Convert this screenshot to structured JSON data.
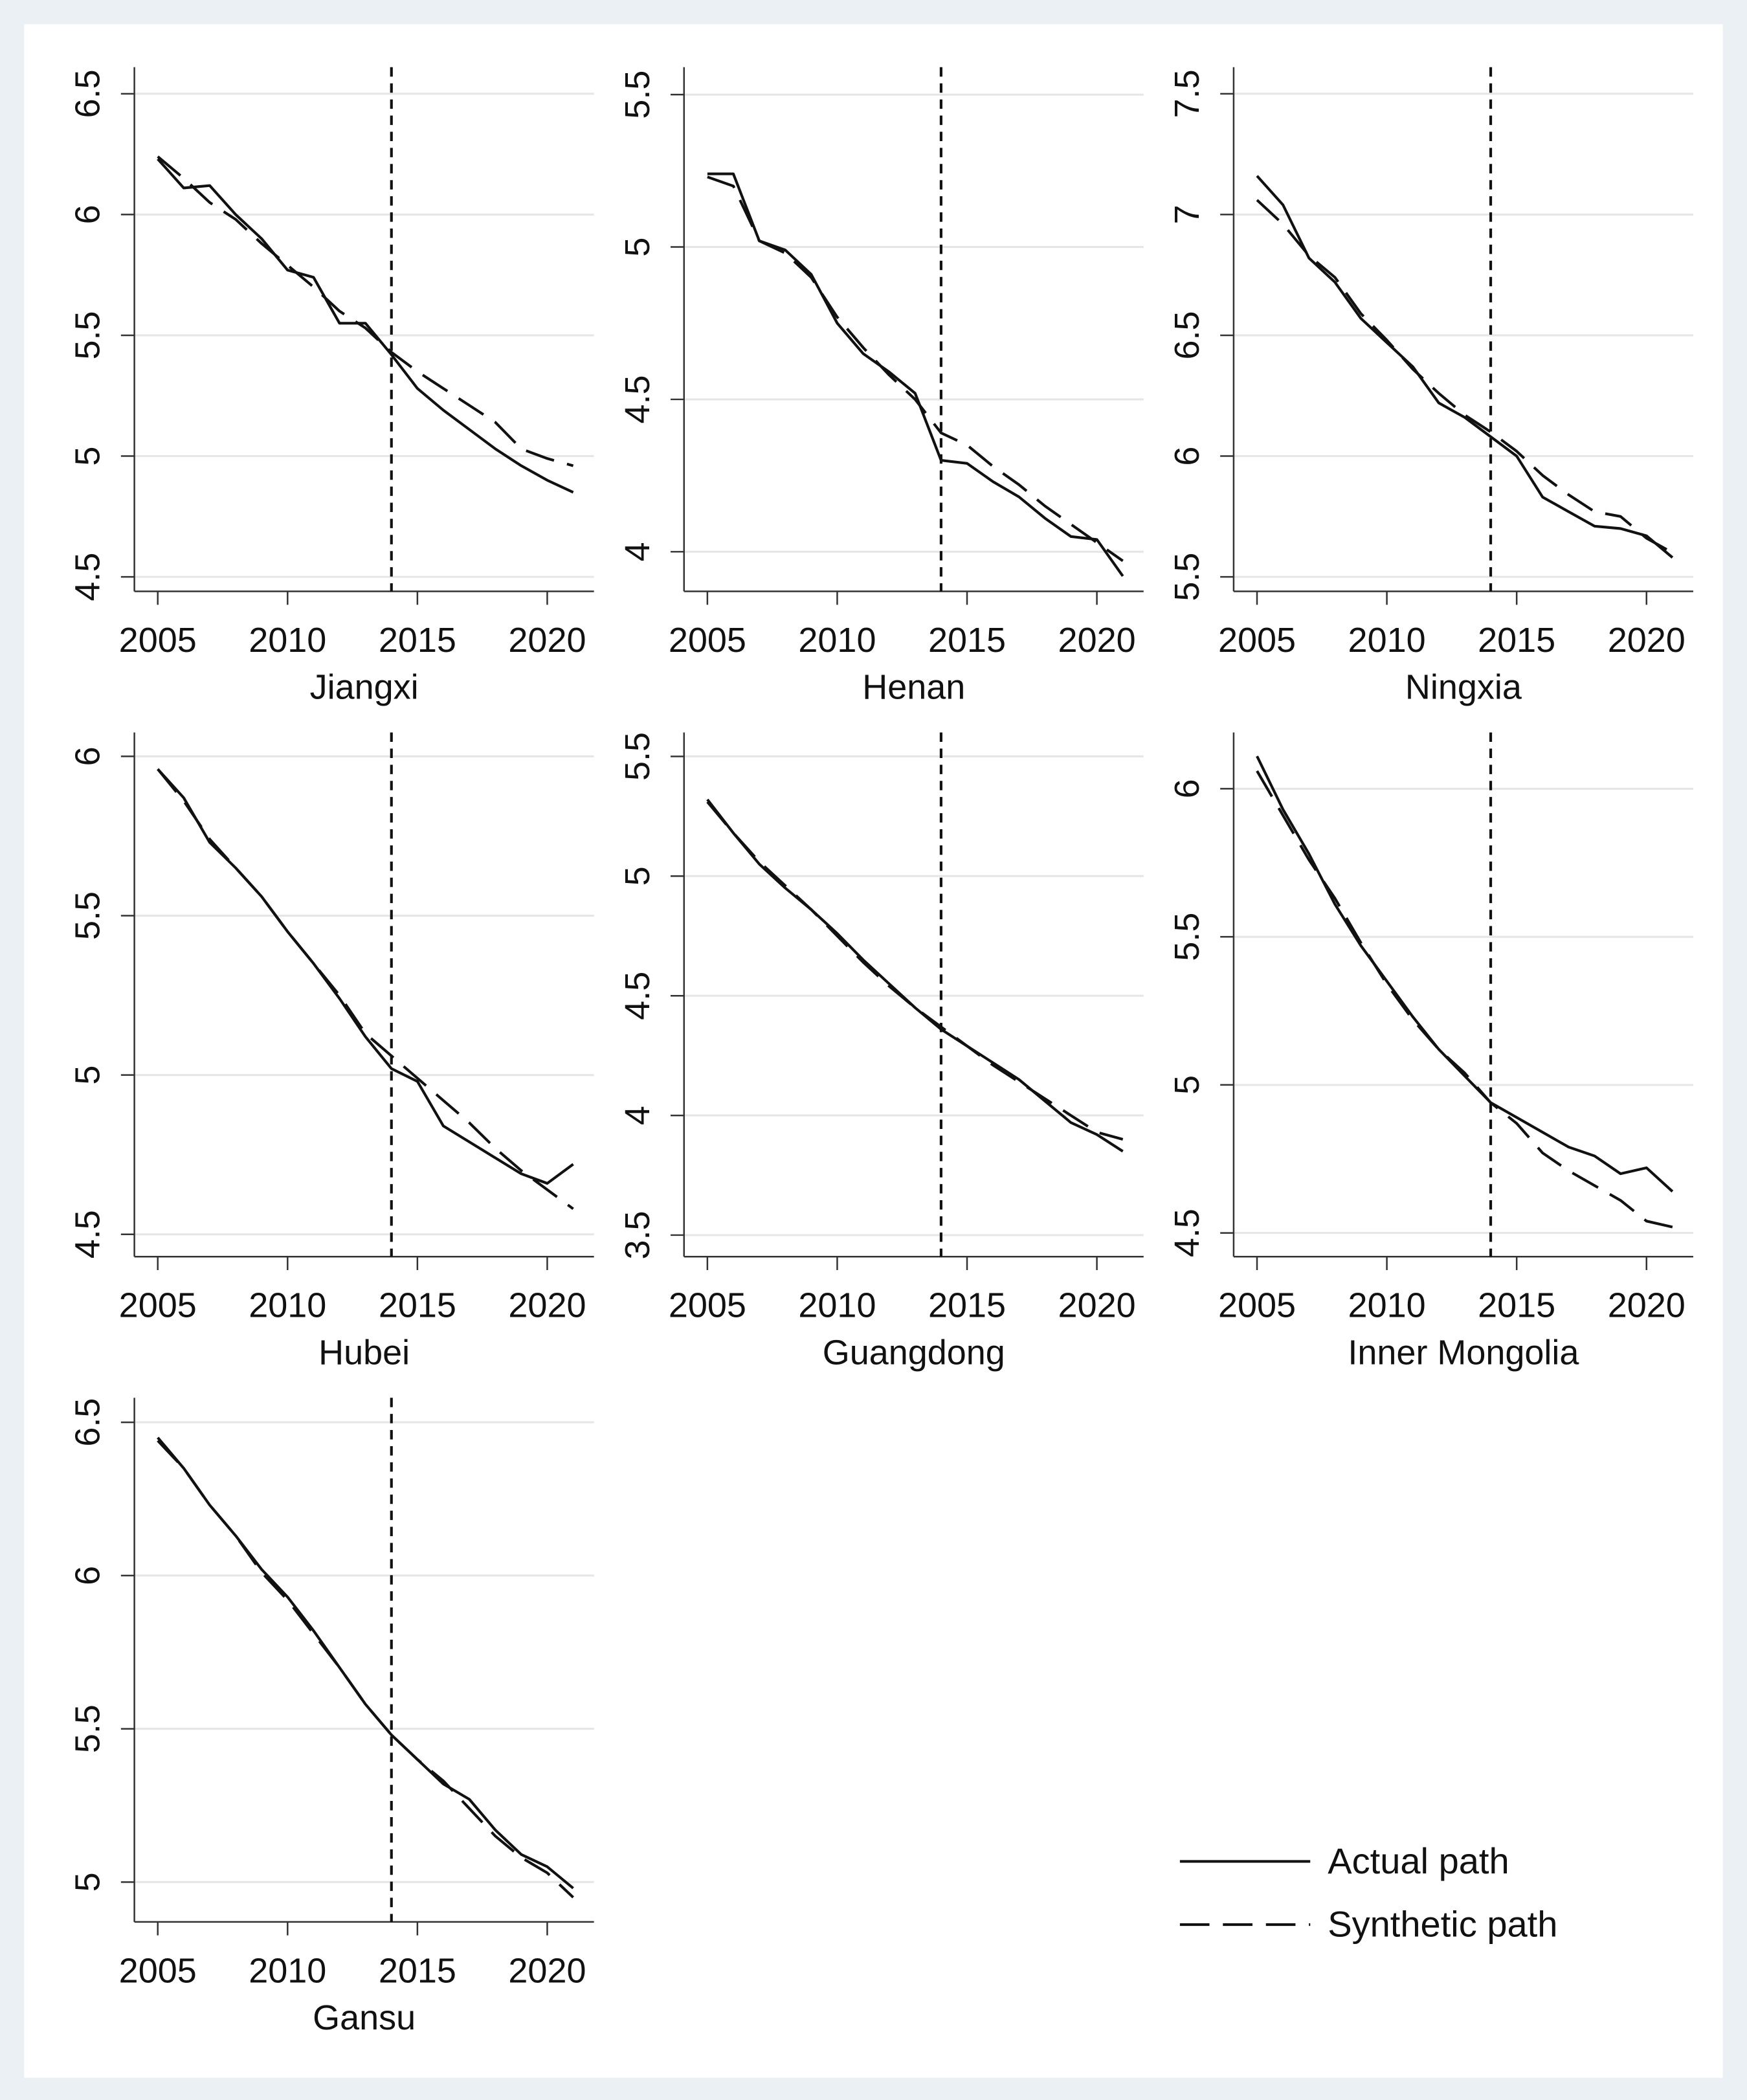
{
  "chart_data": [
    {
      "type": "line",
      "xlabel": "Jiangxi",
      "x": [
        2005,
        2006,
        2007,
        2008,
        2009,
        2010,
        2011,
        2012,
        2013,
        2014,
        2015,
        2016,
        2017,
        2018,
        2019,
        2020,
        2021
      ],
      "series": [
        {
          "name": "Actual path",
          "color": "#111111",
          "values": [
            6.23,
            6.11,
            6.12,
            6.0,
            5.9,
            5.77,
            5.74,
            5.55,
            5.55,
            5.42,
            5.28,
            5.19,
            5.11,
            5.03,
            4.96,
            4.9,
            4.85
          ]
        },
        {
          "name": "Synthetic path",
          "color": "#111111",
          "dashed": true,
          "values": [
            6.24,
            6.15,
            6.05,
            5.98,
            5.88,
            5.79,
            5.7,
            5.6,
            5.53,
            5.43,
            5.35,
            5.28,
            5.21,
            5.14,
            5.03,
            4.99,
            4.96
          ]
        }
      ],
      "xlim": [
        2004.1,
        2021.8
      ],
      "xticks": [
        2005,
        2010,
        2015,
        2020
      ],
      "ylim": [
        4.44,
        6.61
      ],
      "yticks": [
        4.5,
        5,
        5.5,
        6,
        6.5
      ],
      "vline": 2014,
      "grid": true
    },
    {
      "type": "line",
      "xlabel": "Henan",
      "x": [
        2005,
        2006,
        2007,
        2008,
        2009,
        2010,
        2011,
        2012,
        2013,
        2014,
        2015,
        2016,
        2017,
        2018,
        2019,
        2020,
        2021
      ],
      "series": [
        {
          "name": "Actual path",
          "color": "#111111",
          "values": [
            5.24,
            5.24,
            5.02,
            4.99,
            4.91,
            4.75,
            4.65,
            4.59,
            4.52,
            4.3,
            4.29,
            4.23,
            4.18,
            4.11,
            4.05,
            4.04,
            3.92
          ]
        },
        {
          "name": "Synthetic path",
          "color": "#111111",
          "dashed": true,
          "values": [
            5.23,
            5.2,
            5.02,
            4.98,
            4.9,
            4.77,
            4.67,
            4.58,
            4.5,
            4.39,
            4.35,
            4.28,
            4.22,
            4.15,
            4.09,
            4.03,
            3.97
          ]
        }
      ],
      "xlim": [
        2004.1,
        2021.8
      ],
      "xticks": [
        2005,
        2010,
        2015,
        2020
      ],
      "ylim": [
        3.87,
        5.59
      ],
      "yticks": [
        4,
        4.5,
        5,
        5.5
      ],
      "vline": 2014,
      "grid": true
    },
    {
      "type": "line",
      "xlabel": "Ningxia",
      "x": [
        2005,
        2006,
        2007,
        2008,
        2009,
        2010,
        2011,
        2012,
        2013,
        2014,
        2015,
        2016,
        2017,
        2018,
        2019,
        2020,
        2021
      ],
      "series": [
        {
          "name": "Actual path",
          "color": "#111111",
          "values": [
            7.16,
            7.04,
            6.82,
            6.72,
            6.57,
            6.47,
            6.37,
            6.22,
            6.16,
            6.08,
            6.0,
            5.83,
            5.77,
            5.71,
            5.7,
            5.67,
            5.58
          ]
        },
        {
          "name": "Synthetic path",
          "color": "#111111",
          "dashed": true,
          "values": [
            7.06,
            6.96,
            6.83,
            6.74,
            6.59,
            6.48,
            6.36,
            6.26,
            6.17,
            6.1,
            6.02,
            5.92,
            5.84,
            5.77,
            5.75,
            5.66,
            5.6
          ]
        }
      ],
      "xlim": [
        2004.1,
        2021.8
      ],
      "xticks": [
        2005,
        2010,
        2015,
        2020
      ],
      "ylim": [
        5.44,
        7.61
      ],
      "yticks": [
        5.5,
        6,
        6.5,
        7,
        7.5
      ],
      "vline": 2014,
      "grid": true
    },
    {
      "type": "line",
      "xlabel": "Hubei",
      "x": [
        2005,
        2006,
        2007,
        2008,
        2009,
        2010,
        2011,
        2012,
        2013,
        2014,
        2015,
        2016,
        2017,
        2018,
        2019,
        2020,
        2021
      ],
      "series": [
        {
          "name": "Actual path",
          "color": "#111111",
          "values": [
            5.96,
            5.87,
            5.73,
            5.65,
            5.56,
            5.45,
            5.35,
            5.24,
            5.12,
            5.02,
            4.98,
            4.84,
            4.79,
            4.74,
            4.69,
            4.66,
            4.72
          ]
        },
        {
          "name": "Synthetic path",
          "color": "#111111",
          "dashed": true,
          "values": [
            5.96,
            5.86,
            5.74,
            5.65,
            5.56,
            5.45,
            5.35,
            5.25,
            5.13,
            5.06,
            4.99,
            4.92,
            4.85,
            4.77,
            4.7,
            4.64,
            4.58
          ]
        }
      ],
      "xlim": [
        2004.1,
        2021.8
      ],
      "xticks": [
        2005,
        2010,
        2015,
        2020
      ],
      "ylim": [
        4.43,
        6.075
      ],
      "yticks": [
        4.5,
        5,
        5.5,
        6
      ],
      "vline": 2014,
      "grid": true
    },
    {
      "type": "line",
      "xlabel": "Guangdong",
      "x": [
        2005,
        2006,
        2007,
        2008,
        2009,
        2010,
        2011,
        2012,
        2013,
        2014,
        2015,
        2016,
        2017,
        2018,
        2019,
        2020,
        2021
      ],
      "series": [
        {
          "name": "Actual path",
          "color": "#111111",
          "values": [
            5.32,
            5.18,
            5.05,
            4.95,
            4.86,
            4.76,
            4.65,
            4.55,
            4.45,
            4.36,
            4.29,
            4.22,
            4.15,
            4.06,
            3.97,
            3.92,
            3.85
          ]
        },
        {
          "name": "Synthetic path",
          "color": "#111111",
          "dashed": true,
          "values": [
            5.31,
            5.18,
            5.06,
            4.96,
            4.86,
            4.75,
            4.64,
            4.54,
            4.45,
            4.37,
            4.29,
            4.21,
            4.14,
            4.07,
            4.0,
            3.93,
            3.9
          ]
        }
      ],
      "xlim": [
        2004.1,
        2021.8
      ],
      "xticks": [
        2005,
        2010,
        2015,
        2020
      ],
      "ylim": [
        3.41,
        5.6
      ],
      "yticks": [
        3.5,
        4,
        4.5,
        5,
        5.5
      ],
      "vline": 2014,
      "grid": true
    },
    {
      "type": "line",
      "xlabel": "Inner Mongolia",
      "x": [
        2005,
        2006,
        2007,
        2008,
        2009,
        2010,
        2011,
        2012,
        2013,
        2014,
        2015,
        2016,
        2017,
        2018,
        2019,
        2020,
        2021
      ],
      "series": [
        {
          "name": "Actual path",
          "color": "#111111",
          "values": [
            6.11,
            5.93,
            5.78,
            5.61,
            5.47,
            5.35,
            5.23,
            5.12,
            5.03,
            4.94,
            4.89,
            4.84,
            4.79,
            4.76,
            4.7,
            4.72,
            4.64
          ]
        },
        {
          "name": "Synthetic path",
          "color": "#111111",
          "dashed": true,
          "values": [
            6.06,
            5.91,
            5.76,
            5.63,
            5.48,
            5.34,
            5.22,
            5.12,
            5.04,
            4.94,
            4.87,
            4.77,
            4.71,
            4.66,
            4.61,
            4.54,
            4.52
          ]
        }
      ],
      "xlim": [
        2004.1,
        2021.8
      ],
      "xticks": [
        2005,
        2010,
        2015,
        2020
      ],
      "ylim": [
        4.42,
        6.19
      ],
      "yticks": [
        4.5,
        5,
        5.5,
        6
      ],
      "vline": 2014,
      "grid": true
    },
    {
      "type": "line",
      "xlabel": "Gansu",
      "x": [
        2005,
        2006,
        2007,
        2008,
        2009,
        2010,
        2011,
        2012,
        2013,
        2014,
        2015,
        2016,
        2017,
        2018,
        2019,
        2020,
        2021
      ],
      "series": [
        {
          "name": "Actual path",
          "color": "#111111",
          "values": [
            6.45,
            6.35,
            6.23,
            6.13,
            6.02,
            5.93,
            5.82,
            5.7,
            5.58,
            5.48,
            5.4,
            5.32,
            5.27,
            5.17,
            5.09,
            5.05,
            4.98
          ]
        },
        {
          "name": "Synthetic path",
          "color": "#111111",
          "dashed": true,
          "values": [
            6.44,
            6.35,
            6.23,
            6.13,
            6.01,
            5.92,
            5.81,
            5.7,
            5.58,
            5.48,
            5.4,
            5.33,
            5.24,
            5.15,
            5.08,
            5.03,
            4.95
          ]
        }
      ],
      "xlim": [
        2004.1,
        2021.8
      ],
      "xticks": [
        2005,
        2010,
        2015,
        2020
      ],
      "ylim": [
        4.87,
        6.58
      ],
      "yticks": [
        5,
        5.5,
        6,
        6.5
      ],
      "vline": 2014,
      "grid": true
    }
  ]
}
